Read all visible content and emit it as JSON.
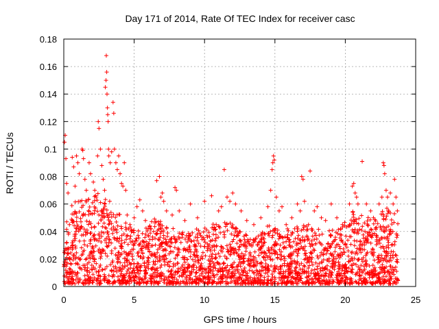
{
  "chart_data": {
    "type": "scatter",
    "title": "Day 171 of 2014, Rate Of TEC Index for receiver casc",
    "xlabel": "GPS time / hours",
    "ylabel": "ROTI / TECUs",
    "xlim": [
      0,
      25
    ],
    "ylim": [
      0,
      0.18
    ],
    "xticks": [
      0,
      5,
      10,
      15,
      20,
      25
    ],
    "xtick_labels": [
      "0",
      "5",
      "10",
      "15",
      "20",
      "25"
    ],
    "yticks": [
      0,
      0.02,
      0.04,
      0.06,
      0.08,
      0.1,
      0.12,
      0.14,
      0.16,
      0.18
    ],
    "ytick_labels": [
      "0",
      "0.02",
      "0.04",
      "0.06",
      "0.08",
      "0.1",
      "0.12",
      "0.14",
      "0.16",
      "0.18"
    ],
    "grid": true,
    "marker": "+",
    "color": "#ff0000",
    "series": [
      {
        "name": "ROTI",
        "points": [
          [
            0.05,
            0.105
          ],
          [
            0.1,
            0.11
          ],
          [
            0.15,
            0.093
          ],
          [
            0.2,
            0.075
          ],
          [
            0.3,
            0.068
          ],
          [
            0.4,
            0.045
          ],
          [
            0.6,
            0.094
          ],
          [
            0.7,
            0.087
          ],
          [
            0.8,
            0.073
          ],
          [
            0.9,
            0.095
          ],
          [
            1.0,
            0.09
          ],
          [
            1.1,
            0.082
          ],
          [
            1.3,
            0.1
          ],
          [
            1.35,
            0.099
          ],
          [
            1.4,
            0.093
          ],
          [
            1.5,
            0.078
          ],
          [
            1.6,
            0.07
          ],
          [
            1.8,
            0.09
          ],
          [
            1.9,
            0.082
          ],
          [
            2.1,
            0.076
          ],
          [
            2.2,
            0.07
          ],
          [
            2.3,
            0.065
          ],
          [
            2.4,
            0.095
          ],
          [
            2.45,
            0.12
          ],
          [
            2.5,
            0.115
          ],
          [
            2.6,
            0.1
          ],
          [
            2.7,
            0.088
          ],
          [
            2.8,
            0.078
          ],
          [
            2.9,
            0.07
          ],
          [
            2.95,
            0.145
          ],
          [
            3.0,
            0.15
          ],
          [
            3.02,
            0.168
          ],
          [
            3.05,
            0.156
          ],
          [
            3.07,
            0.14
          ],
          [
            3.1,
            0.13
          ],
          [
            3.12,
            0.125
          ],
          [
            3.15,
            0.12
          ],
          [
            3.18,
            0.1
          ],
          [
            3.2,
            0.095
          ],
          [
            3.3,
            0.09
          ],
          [
            3.4,
            0.098
          ],
          [
            3.5,
            0.134
          ],
          [
            3.55,
            0.126
          ],
          [
            3.6,
            0.1
          ],
          [
            3.7,
            0.09
          ],
          [
            3.8,
            0.085
          ],
          [
            3.9,
            0.095
          ],
          [
            4.0,
            0.082
          ],
          [
            4.1,
            0.075
          ],
          [
            4.2,
            0.073
          ],
          [
            4.3,
            0.09
          ],
          [
            4.4,
            0.07
          ],
          [
            4.5,
            0.052
          ],
          [
            4.7,
            0.045
          ],
          [
            5.0,
            0.05
          ],
          [
            5.2,
            0.058
          ],
          [
            5.4,
            0.063
          ],
          [
            5.6,
            0.055
          ],
          [
            5.8,
            0.048
          ],
          [
            6.2,
            0.042
          ],
          [
            6.6,
            0.077
          ],
          [
            6.8,
            0.08
          ],
          [
            6.9,
            0.065
          ],
          [
            7.0,
            0.068
          ],
          [
            7.1,
            0.062
          ],
          [
            7.3,
            0.055
          ],
          [
            7.7,
            0.052
          ],
          [
            7.9,
            0.072
          ],
          [
            8.0,
            0.07
          ],
          [
            8.2,
            0.055
          ],
          [
            8.6,
            0.048
          ],
          [
            9.0,
            0.06
          ],
          [
            9.5,
            0.05
          ],
          [
            10.0,
            0.062
          ],
          [
            10.5,
            0.066
          ],
          [
            11.0,
            0.055
          ],
          [
            11.2,
            0.058
          ],
          [
            11.4,
            0.085
          ],
          [
            11.6,
            0.065
          ],
          [
            11.8,
            0.062
          ],
          [
            12.0,
            0.068
          ],
          [
            12.2,
            0.06
          ],
          [
            12.6,
            0.055
          ],
          [
            13.0,
            0.048
          ],
          [
            13.5,
            0.045
          ],
          [
            14.0,
            0.05
          ],
          [
            14.5,
            0.058
          ],
          [
            14.7,
            0.07
          ],
          [
            14.8,
            0.085
          ],
          [
            14.85,
            0.09
          ],
          [
            14.9,
            0.095
          ],
          [
            14.95,
            0.092
          ],
          [
            15.1,
            0.065
          ],
          [
            15.3,
            0.055
          ],
          [
            15.5,
            0.058
          ],
          [
            15.8,
            0.045
          ],
          [
            16.2,
            0.05
          ],
          [
            16.6,
            0.06
          ],
          [
            16.8,
            0.055
          ],
          [
            16.9,
            0.08
          ],
          [
            17.0,
            0.078
          ],
          [
            17.1,
            0.062
          ],
          [
            17.5,
            0.084
          ],
          [
            17.8,
            0.055
          ],
          [
            18.0,
            0.058
          ],
          [
            18.3,
            0.05
          ],
          [
            18.6,
            0.048
          ],
          [
            19.0,
            0.06
          ],
          [
            19.4,
            0.05
          ],
          [
            19.8,
            0.045
          ],
          [
            20.3,
            0.06
          ],
          [
            20.5,
            0.073
          ],
          [
            20.6,
            0.075
          ],
          [
            20.7,
            0.068
          ],
          [
            20.8,
            0.065
          ],
          [
            20.9,
            0.06
          ],
          [
            21.2,
            0.091
          ],
          [
            21.5,
            0.06
          ],
          [
            21.8,
            0.055
          ],
          [
            22.0,
            0.05
          ],
          [
            22.4,
            0.06
          ],
          [
            22.6,
            0.065
          ],
          [
            22.7,
            0.09
          ],
          [
            22.75,
            0.088
          ],
          [
            22.8,
            0.082
          ],
          [
            22.9,
            0.07
          ],
          [
            23.0,
            0.065
          ],
          [
            23.2,
            0.068
          ],
          [
            23.4,
            0.06
          ],
          [
            23.5,
            0.078
          ],
          [
            23.6,
            0.065
          ],
          [
            23.7,
            0.055
          ]
        ],
        "background_band": [
          [
            0,
            0.002,
            0.045
          ],
          [
            0.5,
            0.002,
            0.06
          ],
          [
            1.5,
            0.002,
            0.065
          ],
          [
            2.5,
            0.002,
            0.07
          ],
          [
            3.5,
            0.002,
            0.06
          ],
          [
            4.5,
            0.002,
            0.045
          ],
          [
            5.5,
            0.002,
            0.04
          ],
          [
            6.5,
            0.002,
            0.05
          ],
          [
            7.5,
            0.002,
            0.045
          ],
          [
            8.5,
            0.002,
            0.04
          ],
          [
            9.5,
            0.002,
            0.042
          ],
          [
            10.5,
            0.002,
            0.045
          ],
          [
            11.5,
            0.002,
            0.05
          ],
          [
            12.5,
            0.002,
            0.04
          ],
          [
            13.5,
            0.002,
            0.035
          ],
          [
            14.5,
            0.002,
            0.045
          ],
          [
            15.5,
            0.002,
            0.04
          ],
          [
            16.5,
            0.002,
            0.045
          ],
          [
            17.5,
            0.002,
            0.045
          ],
          [
            18.5,
            0.002,
            0.04
          ],
          [
            19.5,
            0.002,
            0.042
          ],
          [
            20.5,
            0.002,
            0.055
          ],
          [
            21.5,
            0.002,
            0.05
          ],
          [
            22.5,
            0.002,
            0.055
          ],
          [
            23.3,
            0.002,
            0.06
          ],
          [
            23.75,
            0.002,
            0.05
          ]
        ]
      }
    ]
  }
}
